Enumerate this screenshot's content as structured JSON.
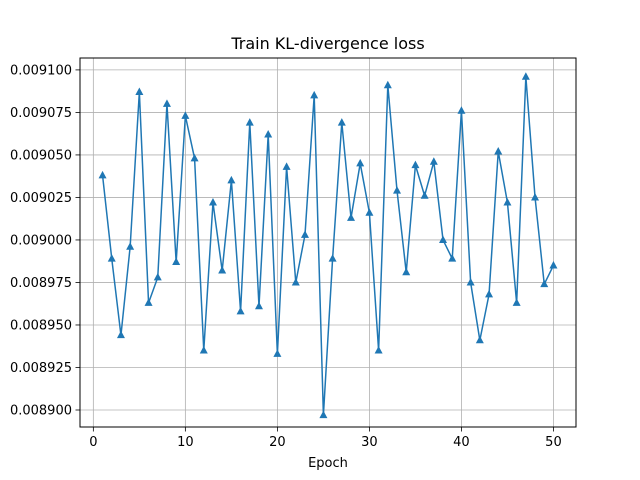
{
  "chart_data": {
    "type": "line",
    "title": "Train KL-divergence loss",
    "xlabel": "Epoch",
    "ylabel": "",
    "xlim": [
      -1.45,
      52.45
    ],
    "ylim": [
      0.00889,
      0.009107
    ],
    "grid": true,
    "marker": "triangle-up",
    "xticks": [
      0,
      10,
      20,
      30,
      40,
      50
    ],
    "yticks": [
      0.0089,
      0.008925,
      0.00895,
      0.008975,
      0.009,
      0.009025,
      0.00905,
      0.009075,
      0.0091
    ],
    "ytick_labels": [
      "0.008900",
      "0.008925",
      "0.008950",
      "0.008975",
      "0.009000",
      "0.009025",
      "0.009050",
      "0.009075",
      "0.009100"
    ],
    "colors": {
      "line": "#1f77b4",
      "grid": "#b0b0b0",
      "axes": "#000000"
    },
    "series": [
      {
        "x": [
          1,
          2,
          3,
          4,
          5,
          6,
          7,
          8,
          9,
          10,
          11,
          12,
          13,
          14,
          15,
          16,
          17,
          18,
          19,
          20,
          21,
          22,
          23,
          24,
          25,
          26,
          27,
          28,
          29,
          30,
          31,
          32,
          33,
          34,
          35,
          36,
          37,
          38,
          39,
          40,
          41,
          42,
          43,
          44,
          45,
          46,
          47,
          48,
          49,
          50
        ],
        "values": [
          0.009038,
          0.008989,
          0.008944,
          0.008996,
          0.009087,
          0.008963,
          0.008978,
          0.00908,
          0.008987,
          0.009073,
          0.009048,
          0.008935,
          0.009022,
          0.008982,
          0.009035,
          0.008958,
          0.009069,
          0.008961,
          0.009062,
          0.008933,
          0.009043,
          0.008975,
          0.009003,
          0.009085,
          0.008897,
          0.008989,
          0.009069,
          0.009013,
          0.009045,
          0.009016,
          0.008935,
          0.009091,
          0.009029,
          0.008981,
          0.009044,
          0.009026,
          0.009046,
          0.009,
          0.008989,
          0.009076,
          0.008975,
          0.008941,
          0.008968,
          0.009052,
          0.009022,
          0.008963,
          0.009096,
          0.009025,
          0.008974,
          0.008985
        ]
      }
    ]
  }
}
